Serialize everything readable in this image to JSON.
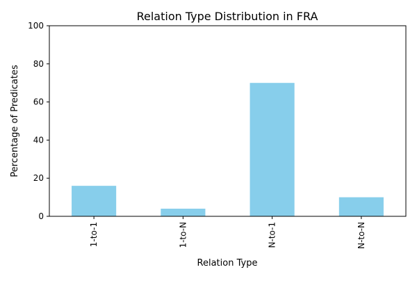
{
  "chart_data": {
    "type": "bar",
    "title": "Relation Type Distribution in FRA",
    "xlabel": "Relation Type",
    "ylabel": "Percentage of Predicates",
    "categories": [
      "1-to-1",
      "1-to-N",
      "N-to-1",
      "N-to-N"
    ],
    "values": [
      16,
      4,
      70,
      10
    ],
    "ylim": [
      0,
      100
    ],
    "yticks": [
      0,
      20,
      40,
      60,
      80,
      100
    ],
    "bar_color": "#87CEEB",
    "grid": false,
    "legend": false
  }
}
